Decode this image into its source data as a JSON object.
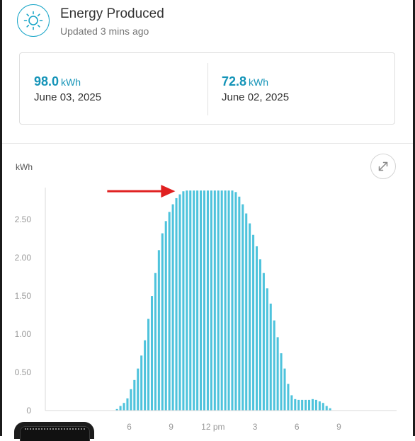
{
  "header": {
    "title": "Energy Produced",
    "subtitle": "Updated 3 mins ago",
    "icon": "sun-icon"
  },
  "summary": [
    {
      "value": "98.0",
      "unit": "kWh",
      "date": "June 03, 2025"
    },
    {
      "value": "72.8",
      "unit": "kWh",
      "date": "June 02, 2025"
    }
  ],
  "colors": {
    "accent": "#1594b8",
    "bar": "#4ec3dc",
    "arrow": "#e02020"
  },
  "chart_data": {
    "type": "bar",
    "ylabel": "kWh",
    "ylim": [
      0,
      2.9
    ],
    "y_ticks": [
      "0",
      "0.50",
      "1.00",
      "1.50",
      "2.00",
      "2.50"
    ],
    "y_tick_values": [
      0,
      0.5,
      1.0,
      1.5,
      2.0,
      2.5
    ],
    "x_ticks": [
      {
        "label": "3",
        "hour": 3
      },
      {
        "label": "6",
        "hour": 6
      },
      {
        "label": "9",
        "hour": 9
      },
      {
        "label": "12 pm",
        "hour": 12
      },
      {
        "label": "3",
        "hour": 15
      },
      {
        "label": "6",
        "hour": 18
      },
      {
        "label": "9",
        "hour": 21
      }
    ],
    "x_range_hours": [
      0,
      24
    ],
    "interval_minutes": 15,
    "start_hour": 5,
    "values": [
      0.02,
      0.06,
      0.1,
      0.16,
      0.28,
      0.4,
      0.55,
      0.72,
      0.92,
      1.2,
      1.5,
      1.8,
      2.1,
      2.32,
      2.48,
      2.6,
      2.7,
      2.78,
      2.83,
      2.87,
      2.88,
      2.88,
      2.88,
      2.88,
      2.88,
      2.88,
      2.88,
      2.88,
      2.88,
      2.88,
      2.88,
      2.88,
      2.88,
      2.88,
      2.86,
      2.8,
      2.7,
      2.58,
      2.45,
      2.3,
      2.15,
      1.98,
      1.8,
      1.6,
      1.4,
      1.18,
      0.96,
      0.75,
      0.55,
      0.35,
      0.2,
      0.15,
      0.14,
      0.14,
      0.14,
      0.14,
      0.15,
      0.14,
      0.12,
      0.1,
      0.06,
      0.03
    ],
    "grid": false,
    "annotation": "arrow pointing at peak plateau"
  }
}
